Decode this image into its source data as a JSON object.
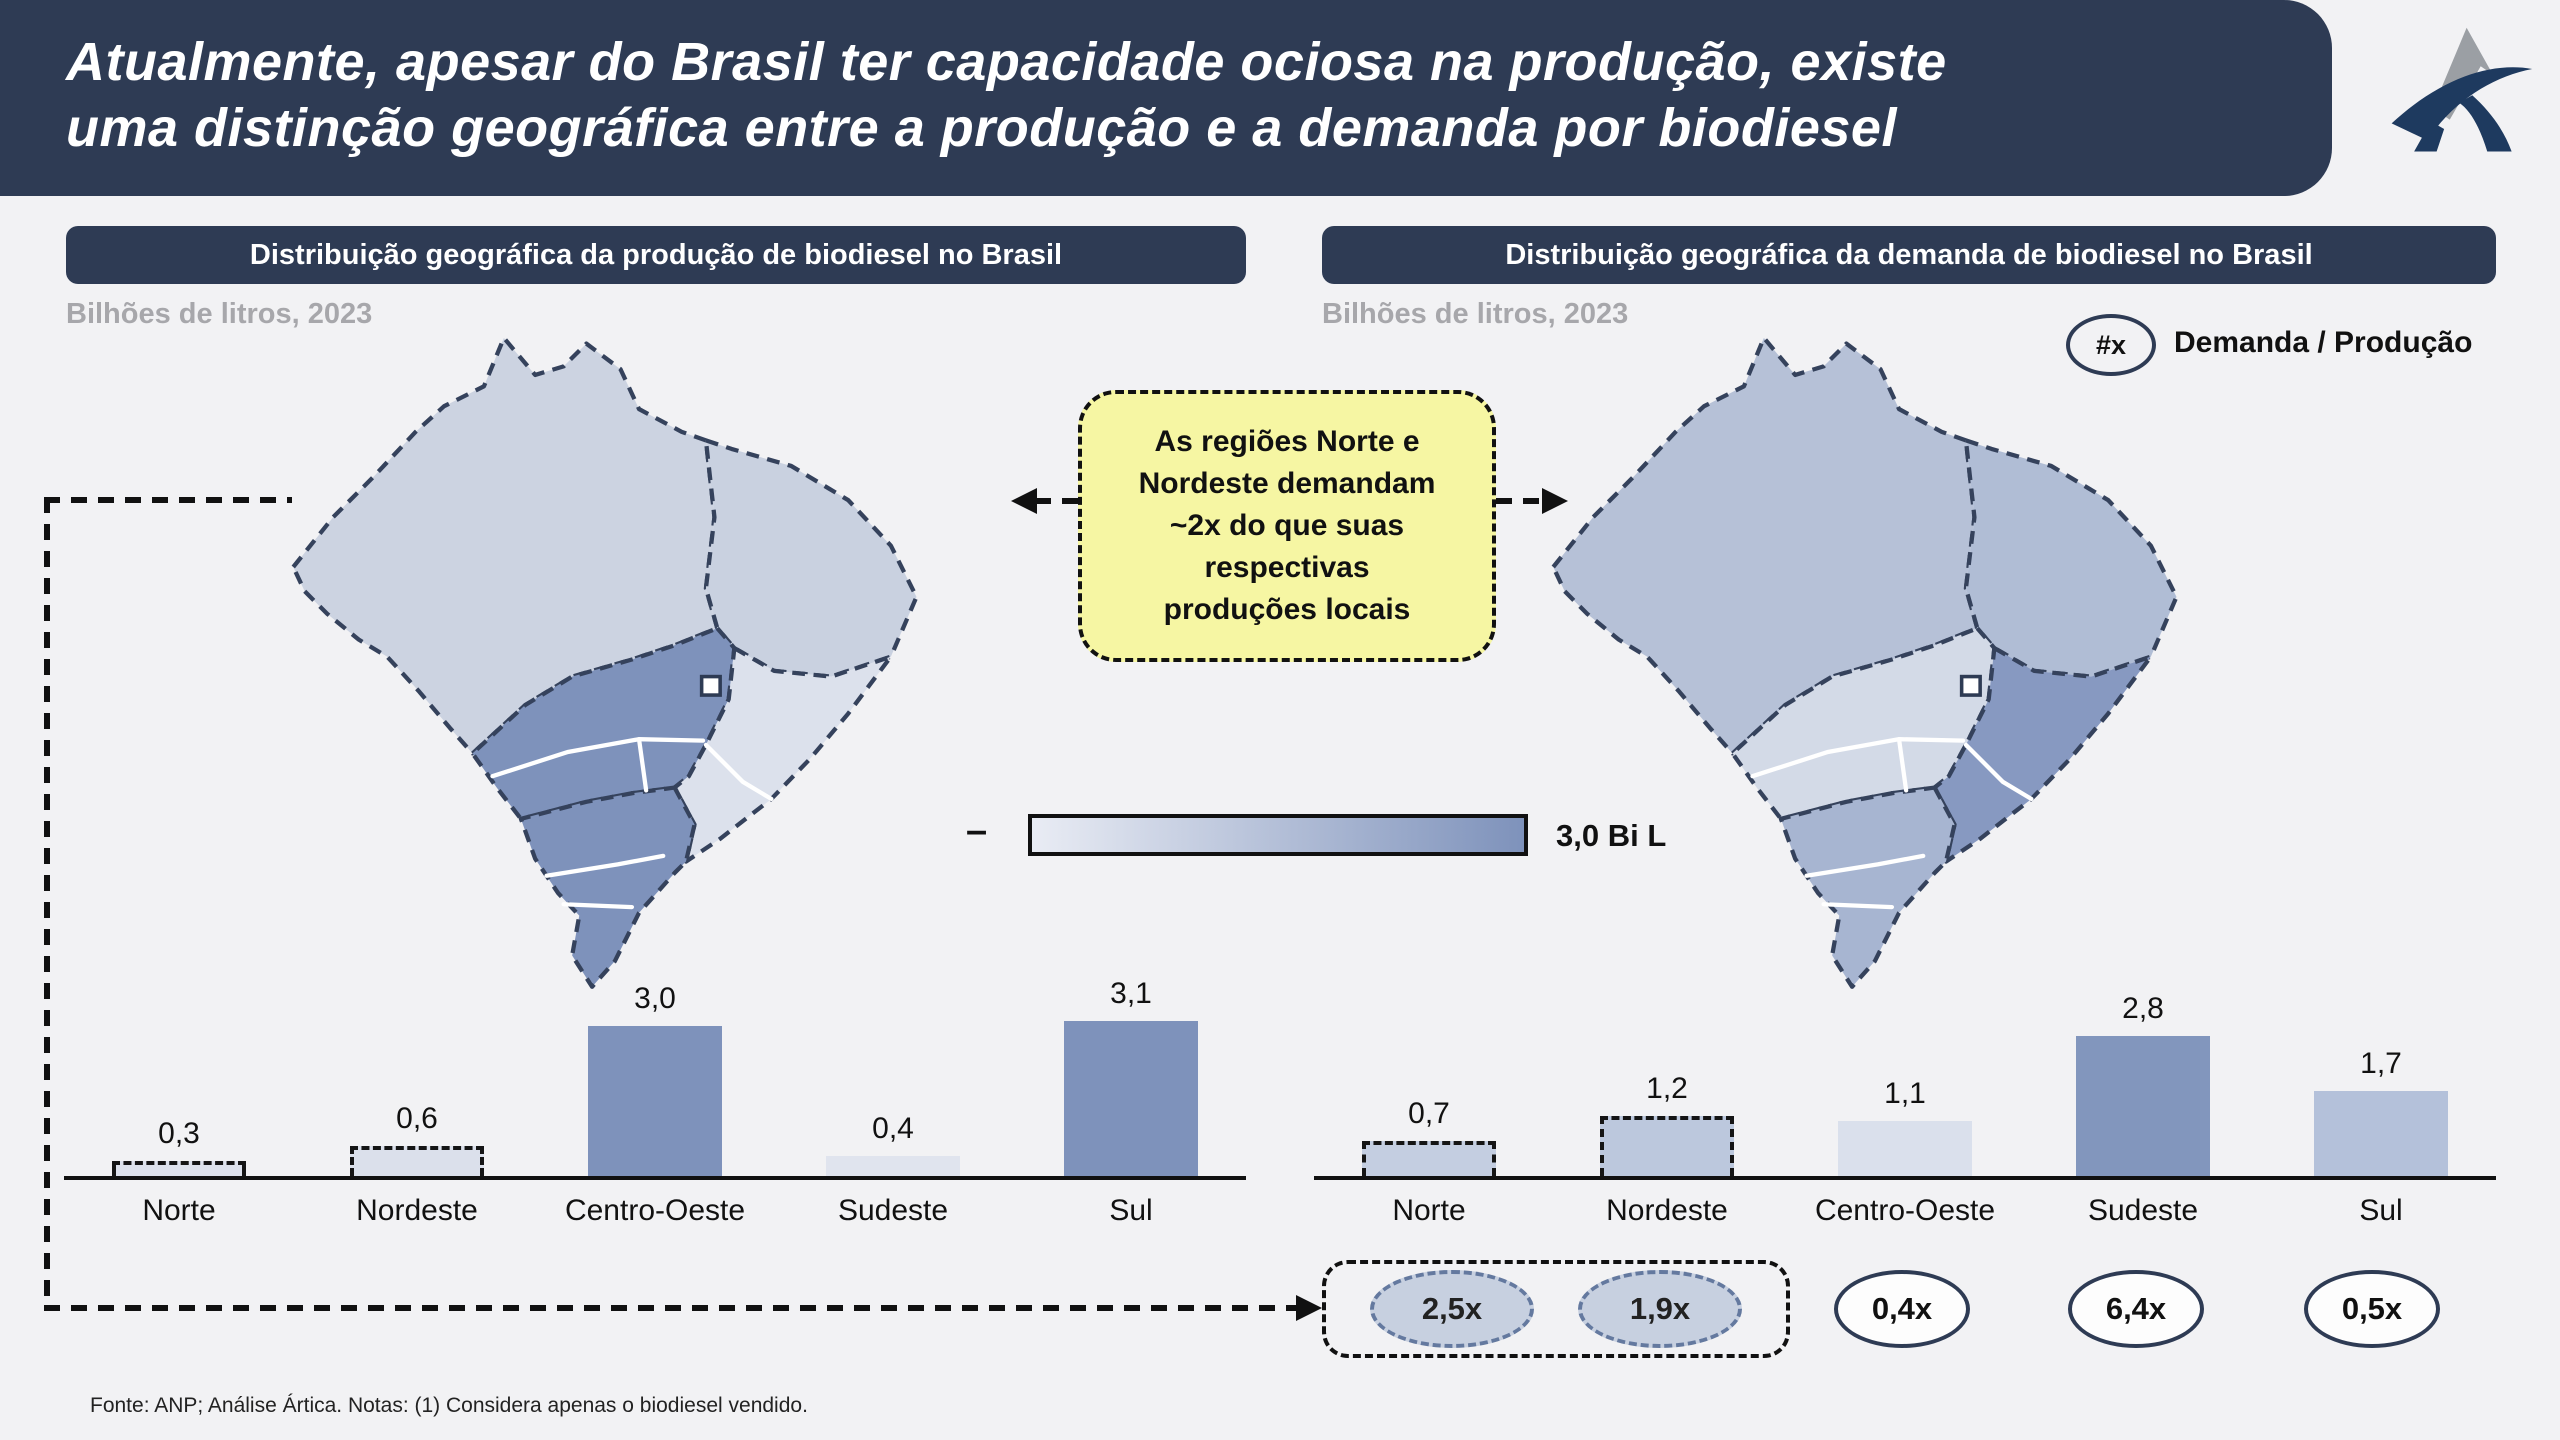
{
  "header": {
    "title_lines": [
      "Atualmente, apesar do Brasil ter capacidade ociosa na produção, existe",
      "uma distinção geográfica entre a produção e a demanda por biodiesel"
    ],
    "logo_name": "artica-logo"
  },
  "panels": {
    "production": {
      "header": "Distribuição geográfica da produção de biodiesel no Brasil",
      "subtitle": "Bilhões de litros, 2023"
    },
    "demand": {
      "header": "Distribuição geográfica da demanda de biodiesel no Brasil",
      "subtitle": "Bilhões de litros, 2023"
    }
  },
  "ratio_legend": {
    "symbol": "#x",
    "label": "Demanda / Produção"
  },
  "callout": {
    "lines": [
      "As regiões Norte e",
      "Nordeste demandam",
      "~2x do que suas",
      "respectivas",
      "produções locais"
    ],
    "bg_color": "#f6f6a3"
  },
  "color_scale": {
    "min_label": "–",
    "max_label": "3,0 Bi L",
    "start_color": "#e9ecf4",
    "end_color": "#7e92bb"
  },
  "chart_data": [
    {
      "type": "bar",
      "title": "Distribuição geográfica da produção de biodiesel no Brasil",
      "unit": "Bilhões de litros, 2023",
      "categories": [
        "Norte",
        "Nordeste",
        "Centro-Oeste",
        "Sudeste",
        "Sul"
      ],
      "values": [
        0.3,
        0.6,
        3.0,
        0.4,
        3.1
      ],
      "value_labels": [
        "0,3",
        "0,6",
        "3,0",
        "0,4",
        "3,1"
      ],
      "bar_colors": [
        "#dde1ec",
        "#dbe0eb",
        "#7e92bb",
        "#e0e4ee",
        "#7e92bb"
      ],
      "dashed": [
        true,
        true,
        false,
        false,
        false
      ],
      "xlabel": "",
      "ylabel": "Bilhões de litros",
      "ylim": [
        0,
        3.1
      ],
      "grid": false,
      "legend": "none"
    },
    {
      "type": "bar",
      "title": "Distribuição geográfica da demanda de biodiesel no Brasil",
      "unit": "Bilhões de litros, 2023",
      "categories": [
        "Norte",
        "Nordeste",
        "Centro-Oeste",
        "Sudeste",
        "Sul"
      ],
      "values": [
        0.7,
        1.2,
        1.1,
        2.8,
        1.7
      ],
      "value_labels": [
        "0,7",
        "1,2",
        "1,1",
        "2,8",
        "1,7"
      ],
      "bar_colors": [
        "#c4cee1",
        "#bcc8dd",
        "#dae0ec",
        "#8296bd",
        "#b4c1da"
      ],
      "dashed": [
        true,
        true,
        false,
        false,
        false
      ],
      "xlabel": "",
      "ylabel": "Bilhões de litros",
      "ylim": [
        0,
        3.1
      ],
      "grid": false,
      "legend": "none"
    }
  ],
  "ratios": {
    "items": [
      {
        "label": "2,5x",
        "region": "Norte",
        "highlighted": true
      },
      {
        "label": "1,9x",
        "region": "Nordeste",
        "highlighted": true
      },
      {
        "label": "0,4x",
        "region": "Centro-Oeste",
        "highlighted": false
      },
      {
        "label": "6,4x",
        "region": "Sudeste",
        "highlighted": false
      },
      {
        "label": "0,5x",
        "region": "Sul",
        "highlighted": false
      }
    ]
  },
  "maps": {
    "production": {
      "region_colors": {
        "norte": "#ccd3e1",
        "nordeste": "#c9d1e0",
        "centro_oeste": "#7e92bb",
        "sudeste": "#dce1ec",
        "sul": "#7e92bb"
      }
    },
    "demand": {
      "region_colors": {
        "norte": "#b6c1d7",
        "nordeste": "#b0bdd5",
        "centro_oeste": "#d3dae7",
        "sudeste": "#8799c1",
        "sul": "#a7b5d1"
      }
    },
    "outline_color": "#35425c"
  },
  "colors": {
    "navy": "#2e3b54",
    "slide_bg": "#f2f2f4"
  },
  "footer": {
    "source": "Fonte: ANP; Análise Ártica. Notas: (1) Considera apenas o biodiesel vendido."
  }
}
